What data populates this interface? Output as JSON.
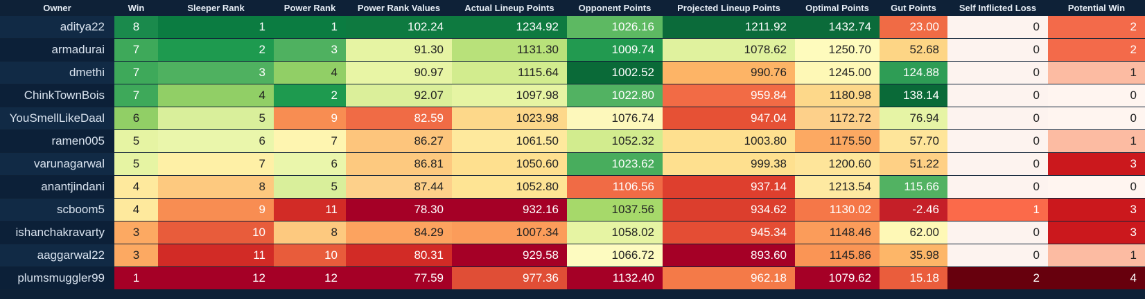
{
  "headers": [
    "Owner",
    "Win",
    "Sleeper Rank",
    "Power Rank",
    "Power Rank Values",
    "Actual Lineup Points",
    "Opponent Points",
    "Projected Lineup Points",
    "Optimal Points",
    "Gut Points",
    "Self Inflicted Loss",
    "Potential Win"
  ],
  "rows": [
    {
      "owner": "aditya22",
      "cells": [
        {
          "v": "8",
          "bg": "#1a8a4c",
          "fg": "#ffffff"
        },
        {
          "v": "1",
          "bg": "#0b7c41",
          "fg": "#ffffff"
        },
        {
          "v": "1",
          "bg": "#0b7c41",
          "fg": "#ffffff"
        },
        {
          "v": "102.24",
          "bg": "#0e7a40",
          "fg": "#ffffff"
        },
        {
          "v": "1234.92",
          "bg": "#0e7a40",
          "fg": "#ffffff"
        },
        {
          "v": "1026.16",
          "bg": "#5db962",
          "fg": "#ffffff"
        },
        {
          "v": "1211.92",
          "bg": "#0b6b3a",
          "fg": "#ffffff"
        },
        {
          "v": "1432.74",
          "bg": "#0b6b3a",
          "fg": "#ffffff"
        },
        {
          "v": "23.00",
          "bg": "#f06b45",
          "fg": "#ffffff"
        },
        {
          "v": "0",
          "bg": "#fdf3ef",
          "fg": "#222222"
        },
        {
          "v": "2",
          "bg": "#f36a4a",
          "fg": "#ffffff"
        }
      ]
    },
    {
      "owner": "armadurai",
      "cells": [
        {
          "v": "7",
          "bg": "#3ea95a",
          "fg": "#ffffff"
        },
        {
          "v": "2",
          "bg": "#1e9a4f",
          "fg": "#ffffff"
        },
        {
          "v": "3",
          "bg": "#4fb160",
          "fg": "#ffffff"
        },
        {
          "v": "91.30",
          "bg": "#e6f4a3",
          "fg": "#222222"
        },
        {
          "v": "1131.30",
          "bg": "#b8e17a",
          "fg": "#222222"
        },
        {
          "v": "1009.74",
          "bg": "#229a50",
          "fg": "#ffffff"
        },
        {
          "v": "1078.62",
          "bg": "#e0f29e",
          "fg": "#222222"
        },
        {
          "v": "1250.70",
          "bg": "#fefbbd",
          "fg": "#222222"
        },
        {
          "v": "52.68",
          "bg": "#fdd585",
          "fg": "#222222"
        },
        {
          "v": "0",
          "bg": "#fdf3ef",
          "fg": "#222222"
        },
        {
          "v": "2",
          "bg": "#f36a4a",
          "fg": "#ffffff"
        }
      ]
    },
    {
      "owner": "dmethi",
      "cells": [
        {
          "v": "7",
          "bg": "#3ea95a",
          "fg": "#ffffff"
        },
        {
          "v": "3",
          "bg": "#4fb160",
          "fg": "#ffffff"
        },
        {
          "v": "4",
          "bg": "#91cf66",
          "fg": "#222222"
        },
        {
          "v": "90.97",
          "bg": "#e8f5a5",
          "fg": "#222222"
        },
        {
          "v": "1115.64",
          "bg": "#d2ec8e",
          "fg": "#222222"
        },
        {
          "v": "1002.52",
          "bg": "#0a6a38",
          "fg": "#ffffff"
        },
        {
          "v": "990.76",
          "bg": "#fdb466",
          "fg": "#222222"
        },
        {
          "v": "1245.00",
          "bg": "#fef8b6",
          "fg": "#222222"
        },
        {
          "v": "124.88",
          "bg": "#2e9d55",
          "fg": "#ffffff"
        },
        {
          "v": "0",
          "bg": "#fdf3ef",
          "fg": "#222222"
        },
        {
          "v": "1",
          "bg": "#fcbba2",
          "fg": "#222222"
        }
      ]
    },
    {
      "owner": "ChinkTownBois",
      "cells": [
        {
          "v": "7",
          "bg": "#3ea95a",
          "fg": "#ffffff"
        },
        {
          "v": "4",
          "bg": "#91cf66",
          "fg": "#222222"
        },
        {
          "v": "2",
          "bg": "#1e9a4f",
          "fg": "#ffffff"
        },
        {
          "v": "92.07",
          "bg": "#dbef9a",
          "fg": "#222222"
        },
        {
          "v": "1097.98",
          "bg": "#e6f4a3",
          "fg": "#222222"
        },
        {
          "v": "1022.80",
          "bg": "#52b262",
          "fg": "#ffffff"
        },
        {
          "v": "959.84",
          "bg": "#f26b45",
          "fg": "#ffffff"
        },
        {
          "v": "1180.98",
          "bg": "#fdd88a",
          "fg": "#222222"
        },
        {
          "v": "138.14",
          "bg": "#0a6a38",
          "fg": "#ffffff"
        },
        {
          "v": "0",
          "bg": "#fdf3ef",
          "fg": "#222222"
        },
        {
          "v": "0",
          "bg": "#fff5f0",
          "fg": "#222222"
        }
      ]
    },
    {
      "owner": "YouSmellLikeDaal",
      "cells": [
        {
          "v": "6",
          "bg": "#91cf66",
          "fg": "#222222"
        },
        {
          "v": "5",
          "bg": "#d9ef9b",
          "fg": "#222222"
        },
        {
          "v": "9",
          "bg": "#f88d52",
          "fg": "#ffffff"
        },
        {
          "v": "82.59",
          "bg": "#f06b45",
          "fg": "#ffffff"
        },
        {
          "v": "1023.98",
          "bg": "#fdd88a",
          "fg": "#222222"
        },
        {
          "v": "1076.74",
          "bg": "#fdf8bb",
          "fg": "#222222"
        },
        {
          "v": "947.04",
          "bg": "#e65135",
          "fg": "#ffffff"
        },
        {
          "v": "1172.72",
          "bg": "#fdd08a",
          "fg": "#222222"
        },
        {
          "v": "76.94",
          "bg": "#e6f4a5",
          "fg": "#222222"
        },
        {
          "v": "0",
          "bg": "#fdf3ef",
          "fg": "#222222"
        },
        {
          "v": "0",
          "bg": "#fff5f0",
          "fg": "#222222"
        }
      ]
    },
    {
      "owner": "ramen005",
      "cells": [
        {
          "v": "5",
          "bg": "#e6f4a3",
          "fg": "#222222"
        },
        {
          "v": "6",
          "bg": "#eaf6ab",
          "fg": "#222222"
        },
        {
          "v": "7",
          "bg": "#fef5b0",
          "fg": "#222222"
        },
        {
          "v": "86.27",
          "bg": "#fdc57c",
          "fg": "#222222"
        },
        {
          "v": "1061.50",
          "bg": "#fee99d",
          "fg": "#222222"
        },
        {
          "v": "1052.32",
          "bg": "#d2ec8e",
          "fg": "#222222"
        },
        {
          "v": "1003.80",
          "bg": "#fee08f",
          "fg": "#222222"
        },
        {
          "v": "1175.50",
          "bg": "#fca962",
          "fg": "#222222"
        },
        {
          "v": "57.70",
          "bg": "#fee59a",
          "fg": "#222222"
        },
        {
          "v": "0",
          "bg": "#fdf3ef",
          "fg": "#222222"
        },
        {
          "v": "1",
          "bg": "#fcbba2",
          "fg": "#222222"
        }
      ]
    },
    {
      "owner": "varunagarwal",
      "cells": [
        {
          "v": "5",
          "bg": "#e6f4a3",
          "fg": "#222222"
        },
        {
          "v": "7",
          "bg": "#fef0a6",
          "fg": "#222222"
        },
        {
          "v": "6",
          "bg": "#eaf6ab",
          "fg": "#222222"
        },
        {
          "v": "86.81",
          "bg": "#fdc97f",
          "fg": "#222222"
        },
        {
          "v": "1050.60",
          "bg": "#fee08f",
          "fg": "#222222"
        },
        {
          "v": "1023.62",
          "bg": "#48ad5d",
          "fg": "#ffffff"
        },
        {
          "v": "999.38",
          "bg": "#fee08f",
          "fg": "#222222"
        },
        {
          "v": "1200.60",
          "bg": "#fee59a",
          "fg": "#222222"
        },
        {
          "v": "51.22",
          "bg": "#fed085",
          "fg": "#222222"
        },
        {
          "v": "0",
          "bg": "#fdf3ef",
          "fg": "#222222"
        },
        {
          "v": "3",
          "bg": "#cb181d",
          "fg": "#ffffff"
        }
      ]
    },
    {
      "owner": "anantjindani",
      "cells": [
        {
          "v": "4",
          "bg": "#fee99d",
          "fg": "#222222"
        },
        {
          "v": "8",
          "bg": "#fdc97f",
          "fg": "#222222"
        },
        {
          "v": "5",
          "bg": "#d9ef9b",
          "fg": "#222222"
        },
        {
          "v": "87.44",
          "bg": "#fdd08a",
          "fg": "#222222"
        },
        {
          "v": "1052.80",
          "bg": "#fee494",
          "fg": "#222222"
        },
        {
          "v": "1106.56",
          "bg": "#f06b45",
          "fg": "#ffffff"
        },
        {
          "v": "937.14",
          "bg": "#de3f2e",
          "fg": "#ffffff"
        },
        {
          "v": "1213.54",
          "bg": "#fee9a1",
          "fg": "#222222"
        },
        {
          "v": "115.66",
          "bg": "#52b262",
          "fg": "#ffffff"
        },
        {
          "v": "0",
          "bg": "#fdf3ef",
          "fg": "#222222"
        },
        {
          "v": "0",
          "bg": "#fff5f0",
          "fg": "#222222"
        }
      ]
    },
    {
      "owner": "scboom5",
      "cells": [
        {
          "v": "4",
          "bg": "#fee99d",
          "fg": "#222222"
        },
        {
          "v": "9",
          "bg": "#f88d52",
          "fg": "#ffffff"
        },
        {
          "v": "11",
          "bg": "#d22b26",
          "fg": "#ffffff"
        },
        {
          "v": "78.30",
          "bg": "#a50026",
          "fg": "#ffffff"
        },
        {
          "v": "932.16",
          "bg": "#a50026",
          "fg": "#ffffff"
        },
        {
          "v": "1037.56",
          "bg": "#a6d96a",
          "fg": "#222222"
        },
        {
          "v": "934.62",
          "bg": "#dc3e2d",
          "fg": "#ffffff"
        },
        {
          "v": "1130.02",
          "bg": "#f57748",
          "fg": "#ffffff"
        },
        {
          "v": "-2.46",
          "bg": "#c51f28",
          "fg": "#ffffff"
        },
        {
          "v": "1",
          "bg": "#fb6a4a",
          "fg": "#ffffff"
        },
        {
          "v": "3",
          "bg": "#cb181d",
          "fg": "#ffffff"
        }
      ]
    },
    {
      "owner": "ishanchakravarty",
      "cells": [
        {
          "v": "3",
          "bg": "#fca962",
          "fg": "#222222"
        },
        {
          "v": "10",
          "bg": "#e85c3b",
          "fg": "#ffffff"
        },
        {
          "v": "8",
          "bg": "#fdc97f",
          "fg": "#222222"
        },
        {
          "v": "84.29",
          "bg": "#fca35f",
          "fg": "#222222"
        },
        {
          "v": "1007.34",
          "bg": "#fb9c5a",
          "fg": "#222222"
        },
        {
          "v": "1058.02",
          "bg": "#e6f4a3",
          "fg": "#222222"
        },
        {
          "v": "945.34",
          "bg": "#e44d34",
          "fg": "#ffffff"
        },
        {
          "v": "1148.46",
          "bg": "#fb9c5a",
          "fg": "#222222"
        },
        {
          "v": "62.00",
          "bg": "#fef8b6",
          "fg": "#222222"
        },
        {
          "v": "0",
          "bg": "#fdf3ef",
          "fg": "#222222"
        },
        {
          "v": "3",
          "bg": "#cb181d",
          "fg": "#ffffff"
        }
      ]
    },
    {
      "owner": "aaggarwal22",
      "cells": [
        {
          "v": "3",
          "bg": "#fca962",
          "fg": "#222222"
        },
        {
          "v": "11",
          "bg": "#d22b26",
          "fg": "#ffffff"
        },
        {
          "v": "10",
          "bg": "#e85c3b",
          "fg": "#ffffff"
        },
        {
          "v": "80.31",
          "bg": "#d22b26",
          "fg": "#ffffff"
        },
        {
          "v": "929.58",
          "bg": "#a50026",
          "fg": "#ffffff"
        },
        {
          "v": "1066.72",
          "bg": "#fdfbc0",
          "fg": "#222222"
        },
        {
          "v": "893.60",
          "bg": "#a50026",
          "fg": "#ffffff"
        },
        {
          "v": "1145.86",
          "bg": "#fa9555",
          "fg": "#222222"
        },
        {
          "v": "35.98",
          "bg": "#fdb668",
          "fg": "#222222"
        },
        {
          "v": "0",
          "bg": "#fdf3ef",
          "fg": "#222222"
        },
        {
          "v": "1",
          "bg": "#fcbba2",
          "fg": "#222222"
        }
      ]
    },
    {
      "owner": "plumsmuggler99",
      "cells": [
        {
          "v": "1",
          "bg": "#a50026",
          "fg": "#ffffff"
        },
        {
          "v": "12",
          "bg": "#a50026",
          "fg": "#ffffff"
        },
        {
          "v": "12",
          "bg": "#a50026",
          "fg": "#ffffff"
        },
        {
          "v": "77.59",
          "bg": "#a50026",
          "fg": "#ffffff"
        },
        {
          "v": "977.36",
          "bg": "#e04e36",
          "fg": "#ffffff"
        },
        {
          "v": "1132.40",
          "bg": "#a50026",
          "fg": "#ffffff"
        },
        {
          "v": "962.18",
          "bg": "#f47a48",
          "fg": "#ffffff"
        },
        {
          "v": "1079.62",
          "bg": "#a50026",
          "fg": "#ffffff"
        },
        {
          "v": "15.18",
          "bg": "#ea5d3c",
          "fg": "#ffffff"
        },
        {
          "v": "2",
          "bg": "#67000d",
          "fg": "#ffffff"
        },
        {
          "v": "4",
          "bg": "#67000d",
          "fg": "#ffffff"
        }
      ]
    }
  ]
}
